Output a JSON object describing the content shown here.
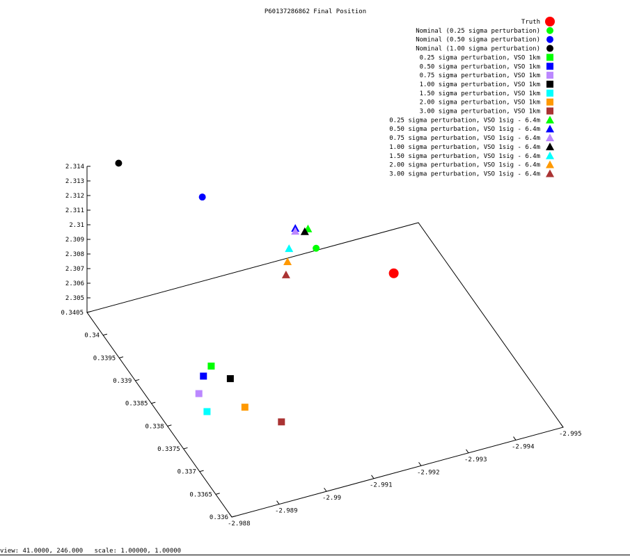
{
  "chart_data": {
    "type": "scatter",
    "title": "P60137286862 Final Position",
    "axes": {
      "x": {
        "range": [
          -2.988,
          -2.995
        ],
        "ticks": [
          "-2.988",
          "-2.989",
          "-2.99",
          "-2.991",
          "-2.992",
          "-2.993",
          "-2.994",
          "-2.995"
        ]
      },
      "y": {
        "range": [
          0.336,
          0.3405
        ],
        "ticks": [
          "0.336",
          "0.3365",
          "0.337",
          "0.3375",
          "0.338",
          "0.3385",
          "0.339",
          "0.3395",
          "0.34",
          "0.3405"
        ]
      },
      "z": {
        "range": [
          2.304,
          2.314
        ],
        "ticks": [
          "2.305",
          "2.306",
          "2.307",
          "2.308",
          "2.309",
          "2.31",
          "2.311",
          "2.312",
          "2.313",
          "2.314"
        ]
      }
    },
    "legend_position": "top-right",
    "series": [
      {
        "name": "Truth",
        "marker": "circle-large",
        "color": "#ff0000"
      },
      {
        "name": "Nominal (0.25 sigma perturbation)",
        "marker": "circle",
        "color": "#00ff00"
      },
      {
        "name": "Nominal (0.50 sigma perturbation)",
        "marker": "circle",
        "color": "#0000ff"
      },
      {
        "name": "Nominal (1.00 sigma perturbation)",
        "marker": "circle",
        "color": "#000000"
      },
      {
        "name": "0.25 sigma perturbation, VSO 1km",
        "marker": "square",
        "color": "#00ff00"
      },
      {
        "name": "0.50 sigma perturbation, VSO 1km",
        "marker": "square",
        "color": "#0000ff"
      },
      {
        "name": "0.75 sigma perturbation, VSO 1km",
        "marker": "square",
        "color": "#bb88ff"
      },
      {
        "name": "1.00 sigma perturbation, VSO 1km",
        "marker": "square",
        "color": "#000000"
      },
      {
        "name": "1.50 sigma perturbation, VSO 1km",
        "marker": "square",
        "color": "#00ffff"
      },
      {
        "name": "2.00 sigma perturbation, VSO 1km",
        "marker": "square",
        "color": "#ff9900"
      },
      {
        "name": "3.00 sigma perturbation, VSO 1km",
        "marker": "square",
        "color": "#aa3333"
      },
      {
        "name": "0.25 sigma perturbation, VSO 1sig - 6.4m",
        "marker": "triangle",
        "color": "#00ff00"
      },
      {
        "name": "0.50 sigma perturbation, VSO 1sig - 6.4m",
        "marker": "triangle",
        "color": "#0000ff"
      },
      {
        "name": "0.75 sigma perturbation, VSO 1sig - 6.4m",
        "marker": "triangle",
        "color": "#bb88ff"
      },
      {
        "name": "1.00 sigma perturbation, VSO 1sig - 6.4m",
        "marker": "triangle",
        "color": "#000000"
      },
      {
        "name": "1.50 sigma perturbation, VSO 1sig - 6.4m",
        "marker": "triangle",
        "color": "#00ffff"
      },
      {
        "name": "2.00 sigma perturbation, VSO 1sig - 6.4m",
        "marker": "triangle",
        "color": "#ff9900"
      },
      {
        "name": "3.00 sigma perturbation, VSO 1sig - 6.4m",
        "marker": "triangle",
        "color": "#aa3333"
      }
    ],
    "points_xyz": [
      [
        -2.9938,
        0.3395,
        2.3047
      ],
      [
        -2.9925,
        0.34,
        2.306
      ],
      [
        -2.9903,
        0.3403,
        2.3105
      ],
      [
        -2.9886,
        0.3404,
        2.314
      ],
      [
        -2.9894,
        0.3387,
        2.3047
      ],
      [
        -2.9891,
        0.3385,
        2.3049
      ],
      [
        -2.9888,
        0.3382,
        2.3049
      ],
      [
        -2.9896,
        0.3384,
        2.3046
      ],
      [
        -2.9887,
        0.3378,
        2.305
      ],
      [
        -2.9895,
        0.3378,
        2.3046
      ],
      [
        -2.99,
        0.3374,
        2.3044
      ],
      [
        -2.9926,
        0.3404,
        2.306
      ],
      [
        -2.9924,
        0.3405,
        2.3059
      ],
      [
        -2.9924,
        0.3405,
        2.3057
      ],
      [
        -2.9926,
        0.3405,
        2.3055
      ],
      [
        -2.9922,
        0.3404,
        2.305
      ],
      [
        -2.9921,
        0.3403,
        2.3045
      ],
      [
        -2.992,
        0.3402,
        2.304
      ]
    ]
  },
  "status_bar": {
    "text": "view: 41.0000, 246.000   scale: 1.00000, 1.00000"
  }
}
